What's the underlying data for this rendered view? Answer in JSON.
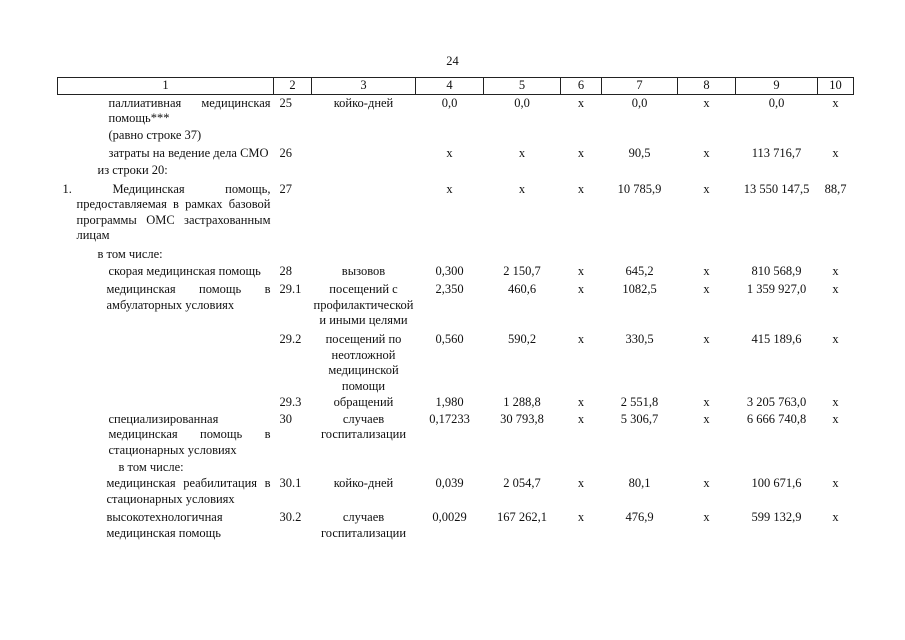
{
  "page_number": "24",
  "table": {
    "header": [
      "1",
      "2",
      "3",
      "4",
      "5",
      "6",
      "7",
      "8",
      "9",
      "10"
    ],
    "rows": [
      [
        "паллиативная медицинская помощь***",
        "25",
        "койко-дней",
        "0,0",
        "0,0",
        "х",
        "0,0",
        "х",
        "0,0",
        "х"
      ],
      [
        "(равно строке 37)",
        null,
        null,
        null,
        null,
        null,
        null,
        null,
        null,
        null
      ],
      [
        "затраты на ведение дела СМО",
        "26",
        null,
        "х",
        "х",
        "х",
        "90,5",
        "х",
        "113 716,7",
        "х"
      ],
      [
        "из строки 20:",
        null,
        null,
        null,
        null,
        null,
        null,
        null,
        null,
        null
      ],
      [
        "1. Медицинская помощь, предоставляемая в рамках базовой программы ОМС застрахованным лицам",
        "27",
        null,
        "х",
        "х",
        "х",
        "10 785,9",
        "х",
        "13 550 147,5",
        "88,7"
      ],
      [
        "в том числе:",
        null,
        null,
        null,
        null,
        null,
        null,
        null,
        null,
        null
      ],
      [
        "скорая медицинская помощь",
        "28",
        "вызовов",
        "0,300",
        "2 150,7",
        "х",
        "645,2",
        "х",
        "810 568,9",
        "х"
      ],
      [
        "медицинская помощь в амбулаторных условиях",
        "29.1",
        "посещений с профилактической и иными целями",
        "2,350",
        "460,6",
        "х",
        "1082,5",
        "х",
        "1 359 927,0",
        "х"
      ],
      [
        null,
        "29.2",
        "посещений по неотложной медицинской помощи",
        "0,560",
        "590,2",
        "х",
        "330,5",
        "х",
        "415 189,6",
        "х"
      ],
      [
        null,
        "29.3",
        "обращений",
        "1,980",
        "1 288,8",
        "х",
        "2 551,8",
        "х",
        "3 205 763,0",
        "х"
      ],
      [
        "специализированная медицинская помощь в стационарных условиях",
        "30",
        "случаев госпитализации",
        "0,17233",
        "30 793,8",
        "х",
        "5 306,7",
        "х",
        "6 666 740,8",
        "х"
      ],
      [
        "в том числе:",
        null,
        null,
        null,
        null,
        null,
        null,
        null,
        null,
        null
      ],
      [
        "медицинская реабилитация в стационарных условиях",
        "30.1",
        "койко-дней",
        "0,039",
        "2 054,7",
        "х",
        "80,1",
        "х",
        "100 671,6",
        "х"
      ],
      [
        "высокотехнологичная медицинская помощь",
        "30.2",
        "случаев госпитализации",
        "0,0029",
        "167 262,1",
        "х",
        "476,9",
        "х",
        "599 132,9",
        "х"
      ]
    ]
  }
}
